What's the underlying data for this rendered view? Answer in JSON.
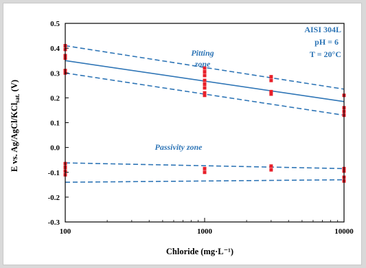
{
  "chart_data": {
    "type": "scatter",
    "xscale": "log",
    "xlim": [
      100,
      10000
    ],
    "ylim": [
      -0.3,
      0.5
    ],
    "x_ticks": [
      "100",
      "1000",
      "10000"
    ],
    "y_ticks": [
      "0.5",
      "0.4",
      "0.3",
      "0.2",
      "0.1",
      "0.0",
      "-0.1",
      "-0.2",
      "-0.3"
    ],
    "y_tick_values": [
      0.5,
      0.4,
      0.3,
      0.2,
      0.1,
      0.0,
      -0.1,
      -0.2,
      -0.3
    ],
    "xlabel": "Chloride (mg·L⁻¹)",
    "ylabel_parts": {
      "main": "E vs. Ag/AgCl/KCl",
      "sub": "sat.",
      "tail": " (V)"
    },
    "annotations": {
      "material": "AISI 304L",
      "ph": "pH = 6",
      "temperature": "T = 20°C",
      "pitting_line1": "Pitting",
      "pitting_line2": "zone",
      "passivity": "Passivity zone"
    },
    "grid": false,
    "lines": [
      {
        "style": "solid",
        "x": [
          100,
          10000
        ],
        "y": [
          0.35,
          0.185
        ]
      },
      {
        "style": "dashed",
        "x": [
          100,
          10000
        ],
        "y": [
          0.41,
          0.235
        ]
      },
      {
        "style": "dashed",
        "x": [
          100,
          10000
        ],
        "y": [
          0.3,
          0.13
        ]
      },
      {
        "style": "dashed",
        "x": [
          100,
          10000
        ],
        "y": [
          -0.062,
          -0.085
        ]
      },
      {
        "style": "dashed",
        "x": [
          100,
          10000
        ],
        "y": [
          -0.14,
          -0.13
        ]
      }
    ],
    "points": [
      {
        "x": 100,
        "y": 0.41
      },
      {
        "x": 100,
        "y": 0.395
      },
      {
        "x": 100,
        "y": 0.37
      },
      {
        "x": 100,
        "y": 0.36
      },
      {
        "x": 100,
        "y": 0.31
      },
      {
        "x": 100,
        "y": 0.3
      },
      {
        "x": 1000,
        "y": 0.32
      },
      {
        "x": 1000,
        "y": 0.305
      },
      {
        "x": 1000,
        "y": 0.29
      },
      {
        "x": 1000,
        "y": 0.27
      },
      {
        "x": 1000,
        "y": 0.255
      },
      {
        "x": 1000,
        "y": 0.24
      },
      {
        "x": 1000,
        "y": 0.22
      },
      {
        "x": 1000,
        "y": 0.21
      },
      {
        "x": 3000,
        "y": 0.285
      },
      {
        "x": 3000,
        "y": 0.27
      },
      {
        "x": 3000,
        "y": 0.225
      },
      {
        "x": 3000,
        "y": 0.215
      },
      {
        "x": 10000,
        "y": 0.21
      },
      {
        "x": 10000,
        "y": 0.16
      },
      {
        "x": 10000,
        "y": 0.145
      },
      {
        "x": 10000,
        "y": 0.13
      },
      {
        "x": 100,
        "y": -0.065
      },
      {
        "x": 100,
        "y": -0.08
      },
      {
        "x": 100,
        "y": -0.095
      },
      {
        "x": 100,
        "y": -0.11
      },
      {
        "x": 1000,
        "y": -0.085
      },
      {
        "x": 1000,
        "y": -0.1
      },
      {
        "x": 3000,
        "y": -0.075
      },
      {
        "x": 3000,
        "y": -0.09
      },
      {
        "x": 10000,
        "y": -0.085
      },
      {
        "x": 10000,
        "y": -0.095
      },
      {
        "x": 10000,
        "y": -0.12
      },
      {
        "x": 10000,
        "y": -0.135
      }
    ],
    "colors": {
      "line": "#2e75b6",
      "marker": "#e8202a",
      "axis": "#000000"
    }
  }
}
